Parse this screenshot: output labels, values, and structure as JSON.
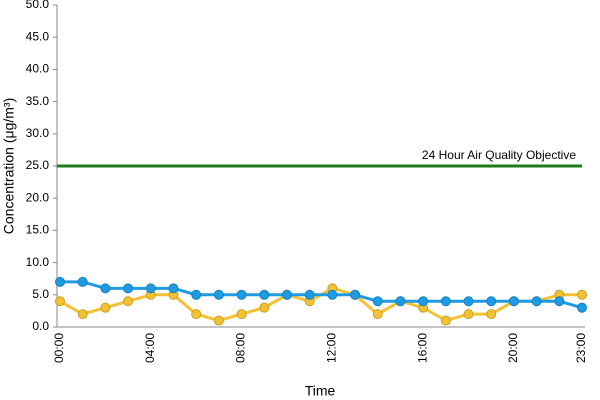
{
  "chart_data": {
    "type": "line",
    "y_label": "Concentration (μg/m³)",
    "x_label": "Time",
    "categories": [
      "00:00",
      null,
      null,
      null,
      "04:00",
      null,
      null,
      null,
      "08:00",
      null,
      null,
      null,
      "12:00",
      null,
      null,
      null,
      "16:00",
      null,
      null,
      null,
      "20:00",
      null,
      null,
      "23:00"
    ],
    "series": [
      {
        "color": "#f2c234",
        "values": [
          4,
          2,
          3,
          4,
          5,
          5,
          2,
          1,
          2,
          3,
          5,
          4,
          6,
          5,
          2,
          4,
          3,
          1,
          2,
          2,
          4,
          4,
          5,
          5
        ]
      },
      {
        "color": "#1e9be3",
        "values": [
          7,
          7,
          6,
          6,
          6,
          6,
          5,
          5,
          5,
          5,
          5,
          5,
          5,
          5,
          4,
          4,
          4,
          4,
          4,
          4,
          4,
          4,
          4,
          3
        ]
      }
    ],
    "reference_line": {
      "value": 25,
      "label": "24 Hour Air Quality Objective",
      "color": "#1a7f1a"
    },
    "ylim": [
      0,
      50
    ],
    "yticks": [
      {
        "value": 0,
        "label": "0.0"
      },
      {
        "value": 5,
        "label": "5.0"
      },
      {
        "value": 10,
        "label": "10.0"
      },
      {
        "value": 15,
        "label": "15.0"
      },
      {
        "value": 20,
        "label": "20.0"
      },
      {
        "value": 25,
        "label": "25.0"
      },
      {
        "value": 30,
        "label": "30.0"
      },
      {
        "value": 35,
        "label": "35.0"
      },
      {
        "value": 40,
        "label": "40.0"
      },
      {
        "value": 45,
        "label": "45.0"
      },
      {
        "value": 50,
        "label": "50.0"
      }
    ],
    "grid": false
  }
}
